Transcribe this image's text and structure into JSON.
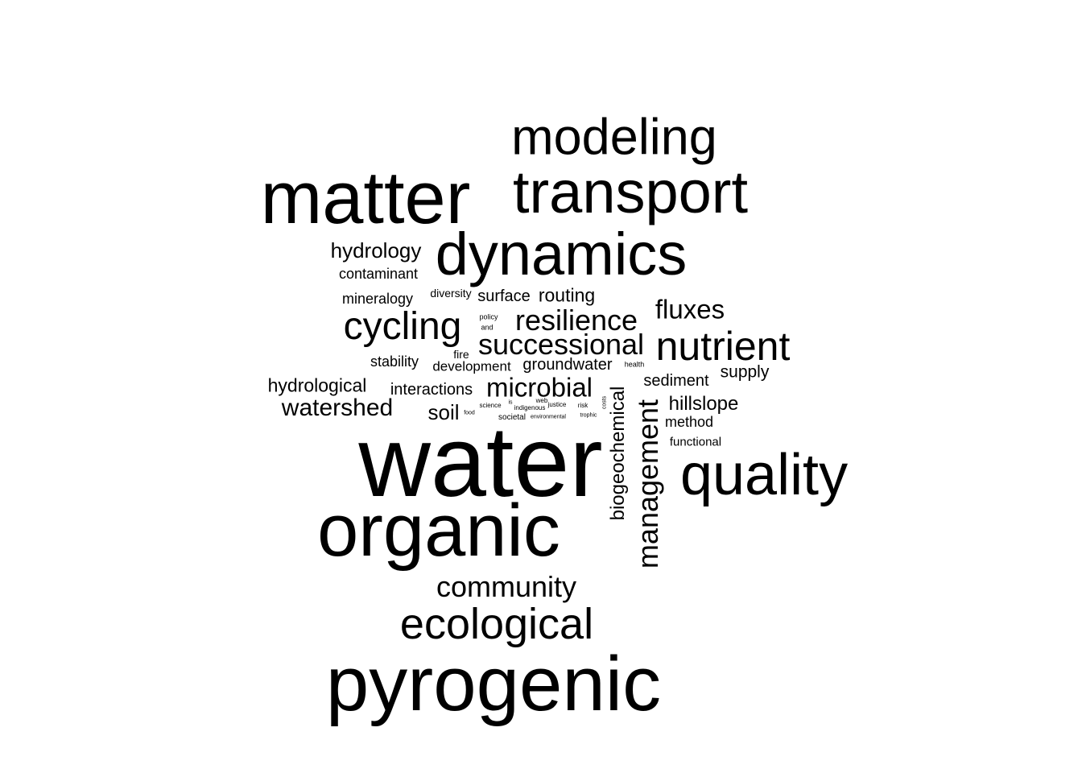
{
  "words": {
    "water": "water",
    "pyrogenic": "pyrogenic",
    "organic": "organic",
    "matter": "matter",
    "transport": "transport",
    "dynamics": "dynamics",
    "modeling": "modeling",
    "quality": "quality",
    "ecological": "ecological",
    "nutrient": "nutrient",
    "community": "community",
    "successional": "successional",
    "cycling": "cycling",
    "resilience": "resilience",
    "microbial": "microbial",
    "watershed": "watershed",
    "management": "management",
    "fluxes": "fluxes",
    "biogeochemical": "biogeochemical",
    "hydrology": "hydrology",
    "hydrological": "hydrological",
    "hillslope": "hillslope",
    "routing": "routing",
    "surface": "surface",
    "soil": "soil",
    "interactions": "interactions",
    "sediment": "sediment",
    "supply": "supply",
    "groundwater": "groundwater",
    "development": "development",
    "contaminant": "contaminant",
    "mineralogy": "mineralogy",
    "stability": "stability",
    "method": "method",
    "functional": "functional",
    "diversity": "diversity",
    "fire": "fire",
    "health": "health",
    "policy": "policy",
    "and": "and",
    "science": "science",
    "food": "food",
    "is": "is",
    "indigenous": "indigenous",
    "web": "web",
    "justice": "justice",
    "risk": "risk",
    "costs": "costs",
    "societal": "societal",
    "environmental": "environmental",
    "trophic": "trophic"
  }
}
